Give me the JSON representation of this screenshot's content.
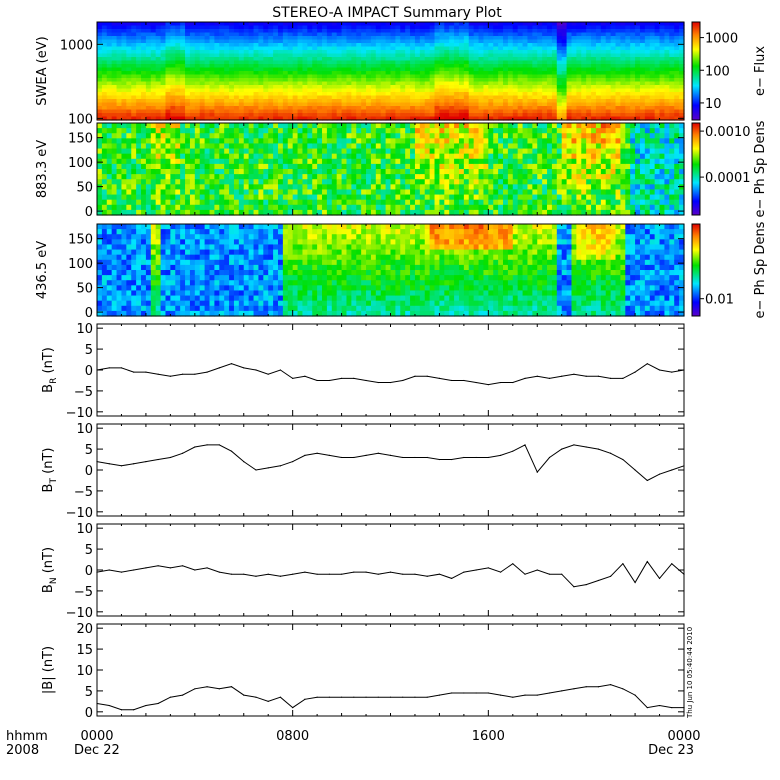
{
  "title": "STEREO-A IMPACT Summary Plot",
  "timestamp_stamp": "Thu Jun 10 05:40:44 2010",
  "time_axis": {
    "header_top": "hhmm",
    "header_bottom": "2008",
    "ticks": [
      {
        "t": 0,
        "label": "0000"
      },
      {
        "t": 8,
        "label": "0800"
      },
      {
        "t": 16,
        "label": "1600"
      },
      {
        "t": 24,
        "label": "0000"
      }
    ],
    "date_start": "Dec 22",
    "date_end": "Dec 23"
  },
  "chart_data": [
    {
      "type": "heatmap",
      "name": "swea",
      "ylabel": "SWEA (eV)",
      "y_scale": "log",
      "ylim": [
        95,
        2000
      ],
      "y_ticks": [
        {
          "v": 1000,
          "label": "1000"
        },
        {
          "v": 100,
          "label": "100"
        }
      ],
      "colorbar": {
        "label": "e− Flux",
        "scale": "log",
        "range": [
          3,
          3000
        ],
        "ticks": [
          {
            "v": 1000,
            "label": "1000"
          },
          {
            "v": 100,
            "label": "100"
          },
          {
            "v": 10,
            "label": "10"
          }
        ]
      }
    },
    {
      "type": "heatmap",
      "name": "pad883",
      "ylabel": "883.3 eV",
      "ylim": [
        -8,
        180
      ],
      "y_ticks": [
        {
          "v": 150,
          "label": "150"
        },
        {
          "v": 100,
          "label": "100"
        },
        {
          "v": 50,
          "label": "50"
        },
        {
          "v": 0,
          "label": "0"
        }
      ],
      "colorbar": {
        "label": "e− Ph Sp Dens",
        "scale": "log",
        "range": [
          1.5e-05,
          0.0015
        ],
        "ticks": [
          {
            "v": 0.001,
            "label": "0.0010"
          },
          {
            "v": 0.0001,
            "label": "0.0001"
          }
        ]
      }
    },
    {
      "type": "heatmap",
      "name": "pad436",
      "ylabel": "436.5 eV",
      "ylim": [
        -8,
        180
      ],
      "y_ticks": [
        {
          "v": 150,
          "label": "150"
        },
        {
          "v": 100,
          "label": "100"
        },
        {
          "v": 50,
          "label": "50"
        },
        {
          "v": 0,
          "label": "0"
        }
      ],
      "colorbar": {
        "label": "e− Ph Sp Dens",
        "scale": "log",
        "range": [
          0.005,
          0.2
        ],
        "ticks": [
          {
            "v": 0.01,
            "label": "0.01"
          }
        ]
      }
    },
    {
      "type": "line",
      "name": "br",
      "ylabel_main": "B",
      "ylabel_sub": "R",
      "ylabel_unit": "(nT)",
      "ylim": [
        -11,
        11
      ],
      "y_ticks": [
        {
          "v": 10,
          "label": "10"
        },
        {
          "v": 5,
          "label": "5"
        },
        {
          "v": 0,
          "label": "0"
        },
        {
          "v": -5,
          "label": "−5"
        },
        {
          "v": -10,
          "label": "−10"
        }
      ],
      "x": [
        0,
        0.5,
        1,
        1.5,
        2,
        2.5,
        3,
        3.5,
        4,
        4.5,
        5,
        5.5,
        6,
        6.5,
        7,
        7.5,
        8,
        8.5,
        9,
        9.5,
        10,
        10.5,
        11,
        11.5,
        12,
        12.5,
        13,
        13.5,
        14,
        14.5,
        15,
        15.5,
        16,
        16.5,
        17,
        17.5,
        18,
        18.5,
        19,
        19.5,
        20,
        20.5,
        21,
        21.5,
        22,
        22.5,
        23,
        23.5,
        24
      ],
      "values": [
        0,
        0.5,
        0.5,
        -0.5,
        -0.5,
        -1,
        -1.5,
        -1,
        -1,
        -0.5,
        0.5,
        1.5,
        0.5,
        0,
        -1,
        0,
        -2,
        -1.5,
        -2.5,
        -2.5,
        -2,
        -2,
        -2.5,
        -3,
        -3,
        -2.5,
        -1.5,
        -1.5,
        -2,
        -2.5,
        -2.5,
        -3,
        -3.5,
        -3,
        -3,
        -2,
        -1.5,
        -2,
        -1.5,
        -1,
        -1.5,
        -1.5,
        -2,
        -2,
        -0.5,
        1.5,
        0,
        -0.5,
        0
      ]
    },
    {
      "type": "line",
      "name": "bt",
      "ylabel_main": "B",
      "ylabel_sub": "T",
      "ylabel_unit": "(nT)",
      "ylim": [
        -11,
        11
      ],
      "y_ticks": [
        {
          "v": 10,
          "label": "10"
        },
        {
          "v": 5,
          "label": "5"
        },
        {
          "v": 0,
          "label": "0"
        },
        {
          "v": -5,
          "label": "−5"
        },
        {
          "v": -10,
          "label": "−10"
        }
      ],
      "x": [
        0,
        0.5,
        1,
        1.5,
        2,
        2.5,
        3,
        3.5,
        4,
        4.5,
        5,
        5.5,
        6,
        6.5,
        7,
        7.5,
        8,
        8.5,
        9,
        9.5,
        10,
        10.5,
        11,
        11.5,
        12,
        12.5,
        13,
        13.5,
        14,
        14.5,
        15,
        15.5,
        16,
        16.5,
        17,
        17.5,
        18,
        18.5,
        19,
        19.5,
        20,
        20.5,
        21,
        21.5,
        22,
        22.5,
        23,
        23.5,
        24
      ],
      "values": [
        2,
        1.5,
        1,
        1.5,
        2,
        2.5,
        3,
        4,
        5.5,
        6,
        6,
        4.5,
        2,
        0,
        0.5,
        1,
        2,
        3.5,
        4,
        3.5,
        3,
        3,
        3.5,
        4,
        3.5,
        3,
        3,
        3,
        2.5,
        2.5,
        3,
        3,
        3,
        3.5,
        4.5,
        6,
        -0.5,
        3,
        5,
        6,
        5.5,
        5,
        4,
        2.5,
        0,
        -2.5,
        -1,
        0,
        1
      ]
    },
    {
      "type": "line",
      "name": "bn",
      "ylabel_main": "B",
      "ylabel_sub": "N",
      "ylabel_unit": "(nT)",
      "ylim": [
        -11,
        11
      ],
      "y_ticks": [
        {
          "v": 10,
          "label": "10"
        },
        {
          "v": 5,
          "label": "5"
        },
        {
          "v": 0,
          "label": "0"
        },
        {
          "v": -5,
          "label": "−5"
        },
        {
          "v": -10,
          "label": "−10"
        }
      ],
      "x": [
        0,
        0.5,
        1,
        1.5,
        2,
        2.5,
        3,
        3.5,
        4,
        4.5,
        5,
        5.5,
        6,
        6.5,
        7,
        7.5,
        8,
        8.5,
        9,
        9.5,
        10,
        10.5,
        11,
        11.5,
        12,
        12.5,
        13,
        13.5,
        14,
        14.5,
        15,
        15.5,
        16,
        16.5,
        17,
        17.5,
        18,
        18.5,
        19,
        19.5,
        20,
        20.5,
        21,
        21.5,
        22,
        22.5,
        23,
        23.5,
        24
      ],
      "values": [
        -0.5,
        0,
        -0.5,
        0,
        0.5,
        1,
        0.5,
        1,
        0,
        0.5,
        -0.5,
        -1,
        -1,
        -1.5,
        -1,
        -1.5,
        -1,
        -0.5,
        -1,
        -1,
        -1,
        -0.5,
        -0.5,
        -1,
        -0.5,
        -1,
        -1,
        -1.5,
        -1,
        -2,
        -0.5,
        0,
        0.5,
        -0.5,
        1.5,
        -1,
        0,
        -1,
        -1,
        -4,
        -3.5,
        -2.5,
        -1.5,
        1.5,
        -3,
        2,
        -2,
        1.5,
        -1
      ]
    },
    {
      "type": "line",
      "name": "bmag",
      "ylabel_main": "|B|",
      "ylabel_sub": "",
      "ylabel_unit": "(nT)",
      "ylim": [
        -1,
        21
      ],
      "y_ticks": [
        {
          "v": 20,
          "label": "20"
        },
        {
          "v": 15,
          "label": "15"
        },
        {
          "v": 10,
          "label": "10"
        },
        {
          "v": 5,
          "label": "5"
        },
        {
          "v": 0,
          "label": "0"
        }
      ],
      "x": [
        0,
        0.5,
        1,
        1.5,
        2,
        2.5,
        3,
        3.5,
        4,
        4.5,
        5,
        5.5,
        6,
        6.5,
        7,
        7.5,
        8,
        8.5,
        9,
        9.5,
        10,
        10.5,
        11,
        11.5,
        12,
        12.5,
        13,
        13.5,
        14,
        14.5,
        15,
        15.5,
        16,
        16.5,
        17,
        17.5,
        18,
        18.5,
        19,
        19.5,
        20,
        20.5,
        21,
        21.5,
        22,
        22.5,
        23,
        23.5,
        24
      ],
      "values": [
        2,
        1.5,
        0.5,
        0.5,
        1.5,
        2,
        3.5,
        4,
        5.5,
        6,
        5.5,
        6,
        4,
        3.5,
        2.5,
        3.5,
        1,
        3,
        3.5,
        3.5,
        3.5,
        3.5,
        3.5,
        3.5,
        3.5,
        3.5,
        3.5,
        3.5,
        4,
        4.5,
        4.5,
        4.5,
        4.5,
        4,
        3.5,
        4,
        4,
        4.5,
        5,
        5.5,
        6,
        6,
        6.5,
        5.5,
        4,
        1,
        1.5,
        1,
        1
      ]
    }
  ]
}
